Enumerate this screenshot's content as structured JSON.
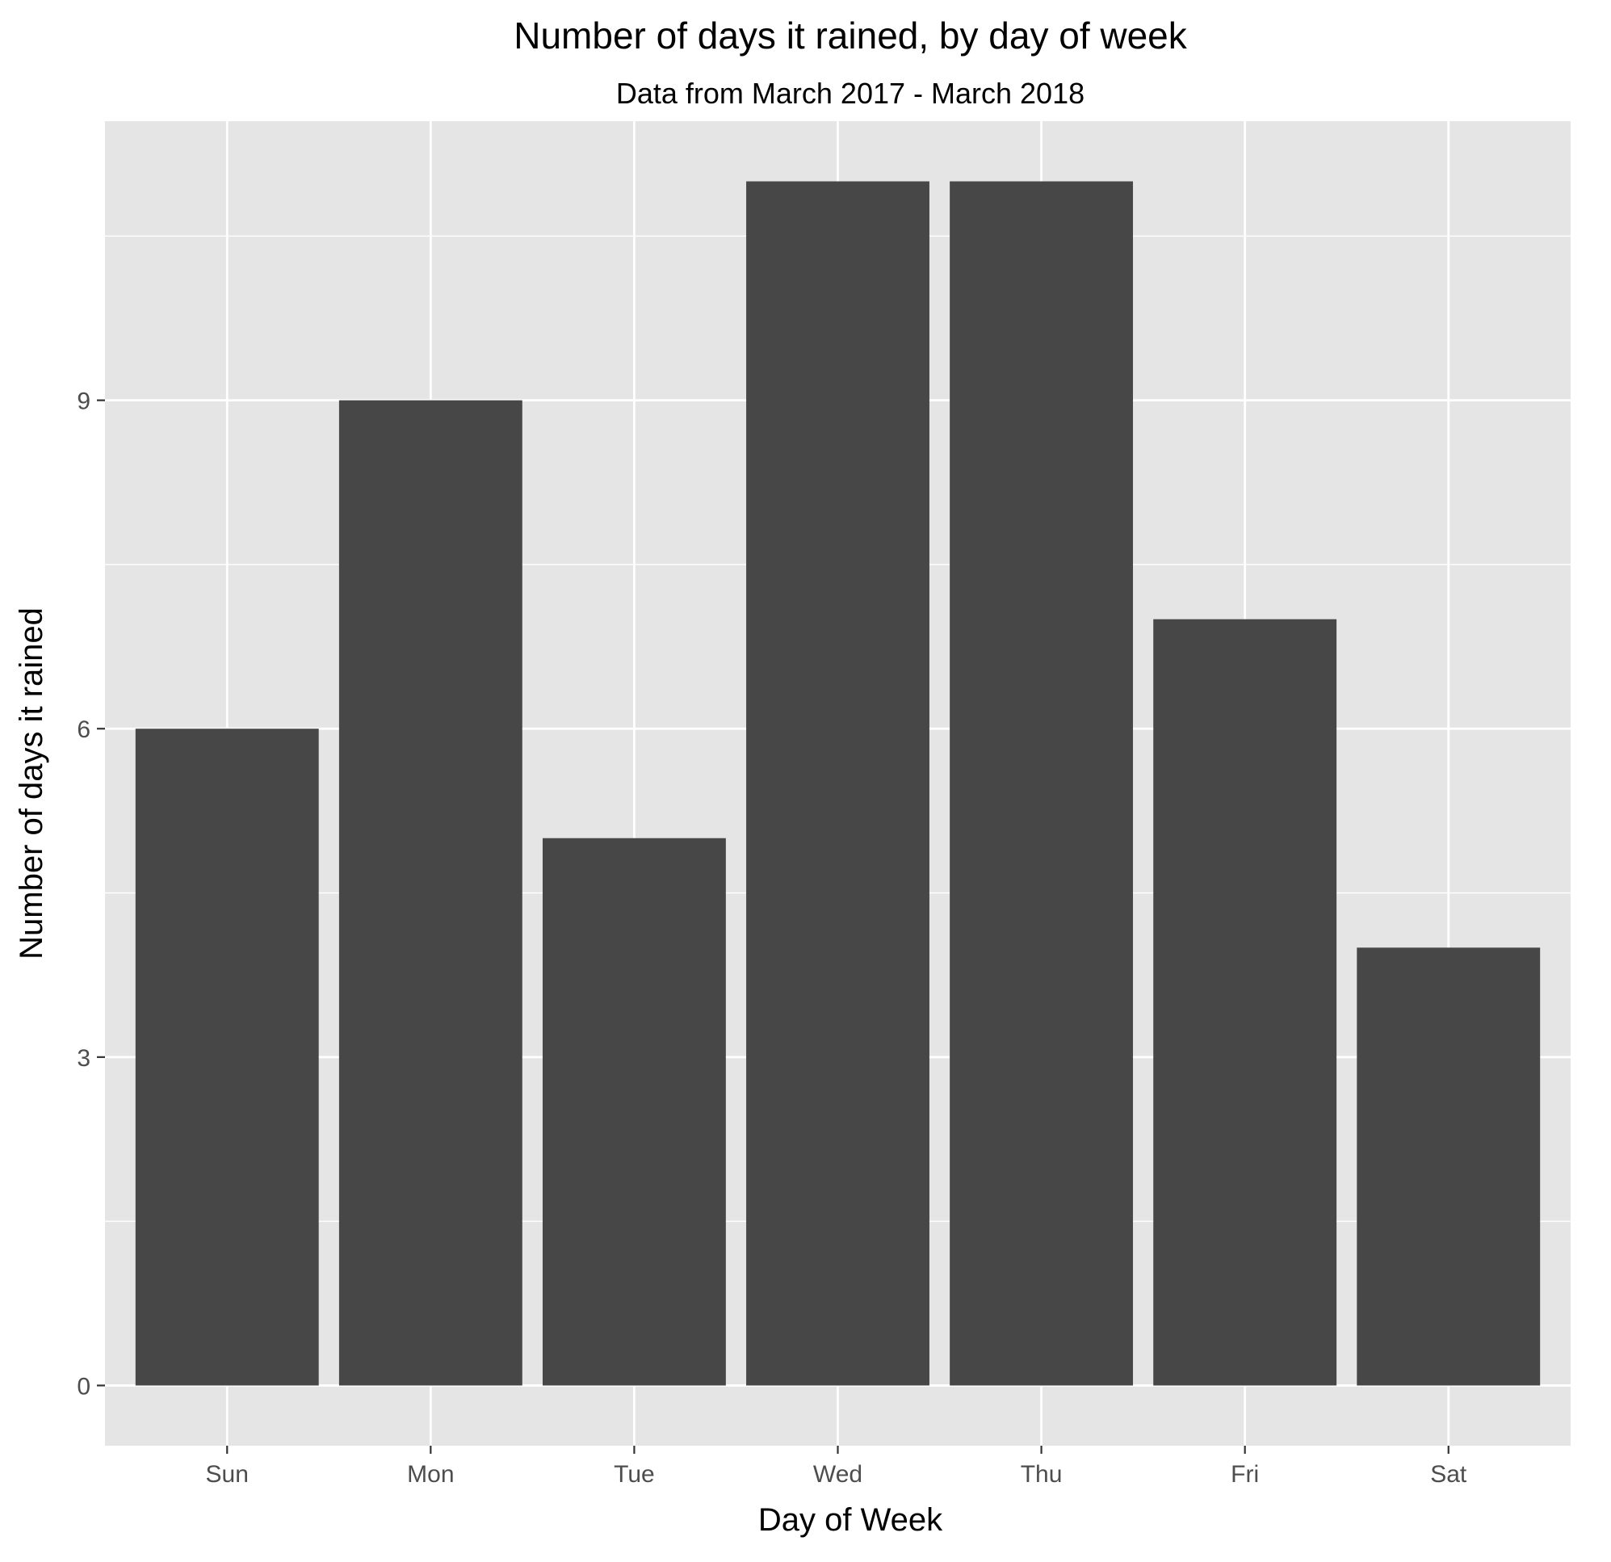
{
  "chart_data": {
    "type": "bar",
    "title": "Number of days it rained, by day of week",
    "subtitle": "Data from March 2017 - March 2018",
    "xlabel": "Day of Week",
    "ylabel": "Number of days it rained",
    "categories": [
      "Sun",
      "Mon",
      "Tue",
      "Wed",
      "Thu",
      "Fri",
      "Sat"
    ],
    "values": [
      6,
      9,
      5,
      11,
      11,
      7,
      4
    ],
    "ylim": [
      -0.55,
      11.55
    ],
    "yticks": [
      0,
      3,
      6,
      9
    ],
    "ytick_labels": [
      "0",
      "3",
      "6",
      "9"
    ],
    "grid": true,
    "legend": "none",
    "colors": {
      "bar": "#474747",
      "panel_background": "#E5E5E5",
      "grid": "#FFFFFF",
      "text": "#000000",
      "tick_text": "#4D4D4D",
      "tick_mark": "#333333"
    }
  }
}
